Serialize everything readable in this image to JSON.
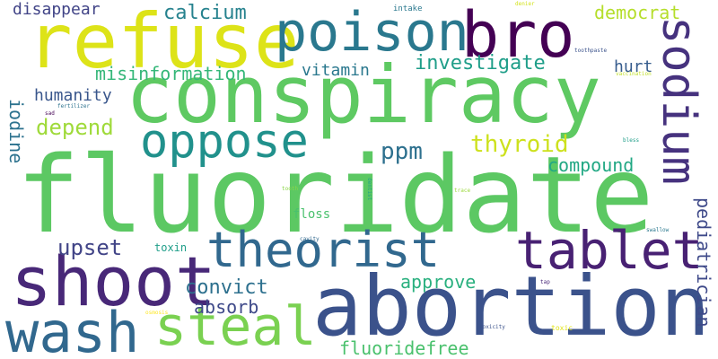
{
  "words": [
    {
      "text": "fluoridate",
      "color": "#5cc863"
    },
    {
      "text": "conspiracy",
      "color": "#5ec962"
    },
    {
      "text": "abortion",
      "color": "#3b528b"
    },
    {
      "text": "refuse",
      "color": "#dde318"
    },
    {
      "text": "bro",
      "color": "#440154"
    },
    {
      "text": "poison",
      "color": "#2a788e"
    },
    {
      "text": "sodium",
      "color": "#46327e"
    },
    {
      "text": "shoot",
      "color": "#482878"
    },
    {
      "text": "theorist",
      "color": "#31688e"
    },
    {
      "text": "tablet",
      "color": "#482173"
    },
    {
      "text": "oppose",
      "color": "#21918c"
    },
    {
      "text": "wash",
      "color": "#31688e"
    },
    {
      "text": "steal",
      "color": "#7ad151"
    },
    {
      "text": "investigate",
      "color": "#1f9e89"
    },
    {
      "text": "calcium",
      "color": "#26828e"
    },
    {
      "text": "disappear",
      "color": "#414487"
    },
    {
      "text": "democrat",
      "color": "#b5de2b"
    },
    {
      "text": "misinformation",
      "color": "#35b779"
    },
    {
      "text": "vitamin",
      "color": "#2a788e"
    },
    {
      "text": "hurt",
      "color": "#365c8d"
    },
    {
      "text": "humanity",
      "color": "#39568c"
    },
    {
      "text": "iodine",
      "color": "#2c728e"
    },
    {
      "text": "depend",
      "color": "#9fda3a"
    },
    {
      "text": "thyroid",
      "color": "#cde11d"
    },
    {
      "text": "ppm",
      "color": "#2d708e"
    },
    {
      "text": "compound",
      "color": "#22a884"
    },
    {
      "text": "upset",
      "color": "#414487"
    },
    {
      "text": "convict",
      "color": "#2d708e"
    },
    {
      "text": "absorb",
      "color": "#3e4989"
    },
    {
      "text": "approve",
      "color": "#2ab07f"
    },
    {
      "text": "pediatrician",
      "color": "#3e4989"
    },
    {
      "text": "fluoridefree",
      "color": "#4ac16d"
    },
    {
      "text": "floss",
      "color": "#4ac16d"
    },
    {
      "text": "toxin",
      "color": "#1f9e89"
    },
    {
      "text": "intake",
      "color": "#2a788e"
    },
    {
      "text": "denier",
      "color": "#d2e21b"
    },
    {
      "text": "toothpaste",
      "color": "#3b528b"
    },
    {
      "text": "vaccination",
      "color": "#c0df25"
    },
    {
      "text": "fertilizer",
      "color": "#2c728e"
    },
    {
      "text": "sad",
      "color": "#440154"
    },
    {
      "text": "bless",
      "color": "#1f9e89"
    },
    {
      "text": "dentist",
      "color": "#20a386"
    },
    {
      "text": "tooth",
      "color": "#8bd646"
    },
    {
      "text": "trace",
      "color": "#9bd93c"
    },
    {
      "text": "cavity",
      "color": "#31688e"
    },
    {
      "text": "swallow",
      "color": "#2a788e"
    },
    {
      "text": "tap",
      "color": "#482878"
    },
    {
      "text": "osmosis",
      "color": "#fde725"
    },
    {
      "text": "toxicity",
      "color": "#3b528b"
    },
    {
      "text": "toxic",
      "color": "#e2e418"
    }
  ]
}
